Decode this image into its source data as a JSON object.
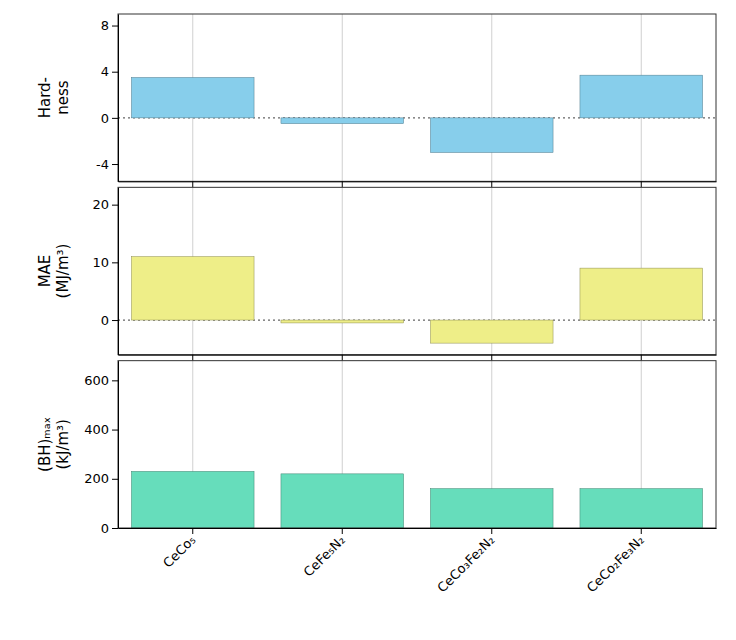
{
  "chart_data": [
    {
      "type": "bar",
      "categories": [
        "CeCo₅",
        "CeFe₅N₂",
        "CeCo₃Fe₂N₂",
        "CeCo₂Fe₃N₂"
      ],
      "values": [
        3.5,
        -0.5,
        -3.0,
        3.7
      ],
      "color": "#87CEEB",
      "ylim": [
        -5.5,
        9
      ],
      "yticks": [
        -4,
        0,
        4,
        8
      ],
      "y_label": "Hard-\nness",
      "grid": true,
      "tick_labels": "y"
    },
    {
      "type": "bar",
      "categories": [
        "CeCo₅",
        "CeFe₅N₂",
        "CeCo₃Fe₂N₂",
        "CeCo₂Fe₃N₂"
      ],
      "values": [
        11.0,
        -0.5,
        -4.0,
        9.0
      ],
      "color": "#EEEE88",
      "ylim": [
        -6,
        23
      ],
      "yticks": [
        0,
        10,
        20
      ],
      "y_label": "MAE\n(MJ/m³)",
      "grid": true,
      "tick_labels": "y"
    },
    {
      "type": "bar",
      "categories": [
        "CeCo₅",
        "CeFe₅N₂",
        "CeCo₃Fe₂N₂",
        "CeCo₂Fe₃N₂"
      ],
      "values": [
        230,
        220,
        160,
        160
      ],
      "color": "#66DDBB",
      "ylim": [
        0,
        680
      ],
      "yticks": [
        0,
        200,
        400,
        600
      ],
      "y_label": "(BH)ₘₐₓ\n(kJ/m³)",
      "grid": true
    }
  ]
}
